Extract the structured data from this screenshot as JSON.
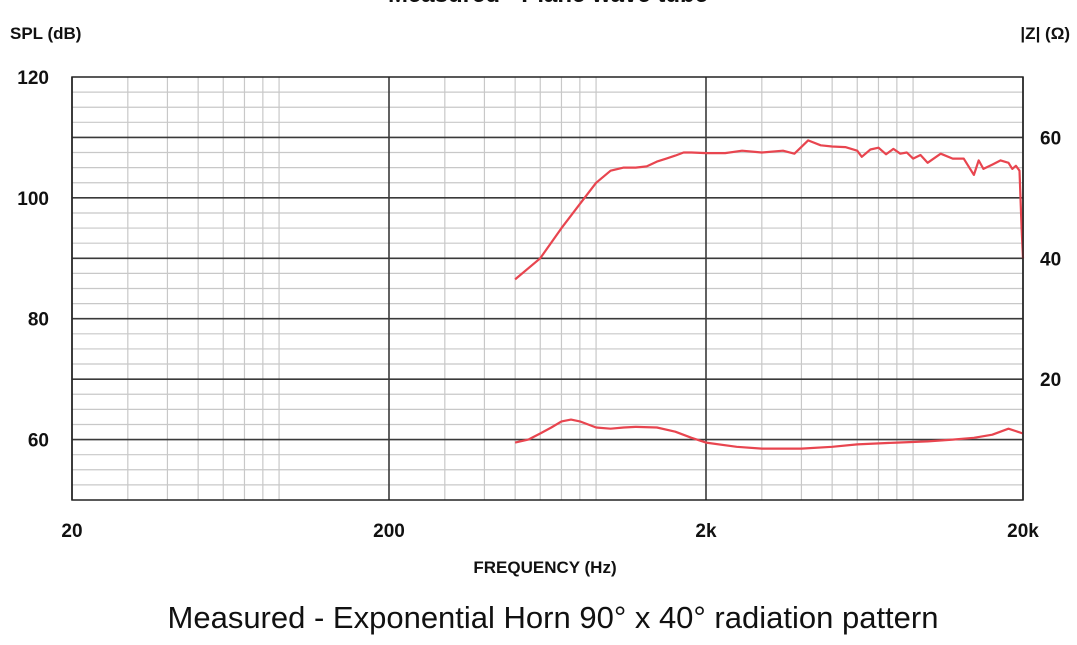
{
  "chart_data": {
    "type": "line",
    "title": "Measured - Plane wave tube",
    "caption": "Measured - Exponential Horn 90° x 40° radiation pattern",
    "xlabel": "FREQUENCY (Hz)",
    "ylabel_left": "SPL (dB)",
    "ylabel_right": "|Z| (Ω)",
    "xscale": "log",
    "xlim": [
      20,
      20000
    ],
    "ylim_left": [
      50,
      120
    ],
    "ylim_right": [
      0,
      70
    ],
    "x_ticks": [
      {
        "value": 20,
        "label": "20"
      },
      {
        "value": 200,
        "label": "200"
      },
      {
        "value": 2000,
        "label": "2k"
      },
      {
        "value": 20000,
        "label": "20k"
      }
    ],
    "y_ticks_left": [
      {
        "value": 60,
        "label": "60"
      },
      {
        "value": 80,
        "label": "80"
      },
      {
        "value": 100,
        "label": "100"
      },
      {
        "value": 120,
        "label": "120"
      }
    ],
    "y_ticks_right": [
      {
        "value": 20,
        "label": "20"
      },
      {
        "value": 40,
        "label": "40"
      },
      {
        "value": 60,
        "label": "60"
      }
    ],
    "grid": true,
    "line_color": "#e8454f",
    "series": [
      {
        "axis": "left",
        "x": [
          500,
          600,
          700,
          800,
          900,
          1000,
          1100,
          1200,
          1300,
          1400,
          1500,
          1600,
          1700,
          1800,
          2000,
          2300,
          2600,
          3000,
          3500,
          3800,
          4200,
          4600,
          5000,
          5500,
          6000,
          6200,
          6600,
          7000,
          7400,
          7800,
          8200,
          8600,
          9000,
          9500,
          10000,
          11000,
          12000,
          13000,
          14000,
          14500,
          15000,
          16000,
          17000,
          18000,
          18500,
          19000,
          19500,
          19800,
          20000
        ],
        "y": [
          86.5,
          90,
          95,
          99,
          102.5,
          104.5,
          105,
          105,
          105.2,
          106,
          106.5,
          107,
          107.5,
          107.5,
          107.4,
          107.4,
          107.8,
          107.5,
          107.8,
          107.3,
          109.5,
          108.7,
          108.5,
          108.4,
          107.8,
          106.8,
          108,
          108.3,
          107.2,
          108.1,
          107.3,
          107.5,
          106.5,
          107.1,
          105.8,
          107.3,
          106.5,
          106.5,
          103.8,
          106.2,
          104.8,
          105.5,
          106.2,
          105.8,
          104.8,
          105.3,
          104.5,
          95,
          90
        ]
      },
      {
        "axis": "right",
        "x": [
          500,
          550,
          600,
          650,
          700,
          750,
          800,
          850,
          900,
          1000,
          1100,
          1200,
          1400,
          1600,
          1800,
          2000,
          2500,
          3000,
          3500,
          4000,
          5000,
          6000,
          8000,
          10000,
          12000,
          14000,
          16000,
          18000,
          20000
        ],
        "y": [
          9.5,
          10,
          11,
          12,
          13,
          13.3,
          13,
          12.5,
          12,
          11.8,
          12,
          12.1,
          12,
          11.3,
          10.3,
          9.5,
          8.8,
          8.5,
          8.5,
          8.5,
          8.8,
          9.2,
          9.5,
          9.7,
          10,
          10.3,
          10.8,
          11.8,
          11
        ]
      }
    ]
  }
}
